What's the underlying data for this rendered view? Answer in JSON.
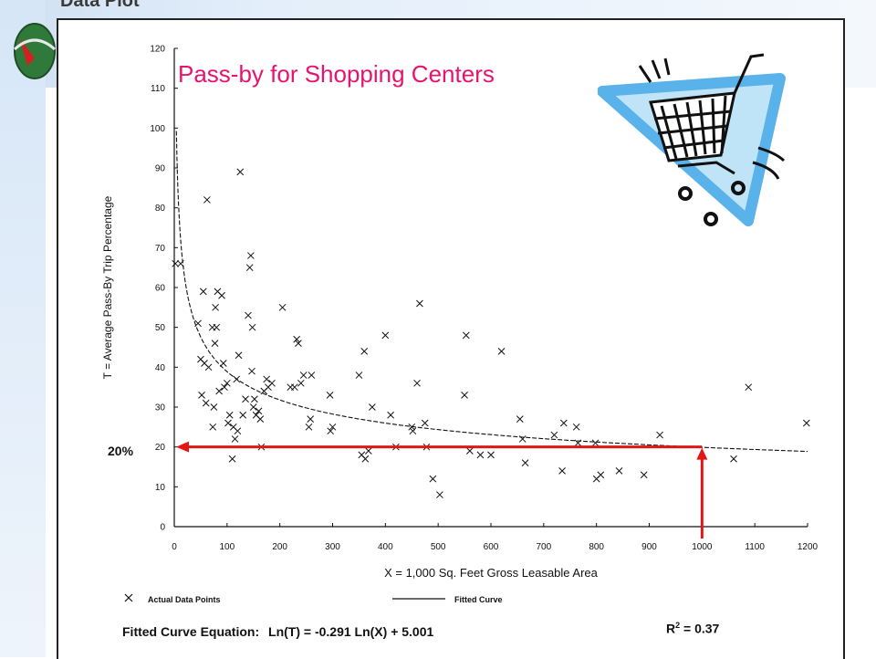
{
  "slide": {
    "header": "Data Plot",
    "title": "Pass-by for Shopping Centers",
    "callout_label": "20%",
    "callout_value": 20,
    "callout_x": 1000
  },
  "chart_data": {
    "type": "scatter",
    "title": "",
    "xlabel": "X = 1,000 Sq. Feet Gross Leasable Area",
    "ylabel": "T = Average Pass-By Trip Percentage",
    "xlim": [
      0,
      1200
    ],
    "ylim": [
      0,
      120
    ],
    "x_ticks": [
      "0",
      "100",
      "200",
      "300",
      "400",
      "500",
      "600",
      "700",
      "800",
      "900",
      "1000",
      "1100",
      "1200"
    ],
    "y_ticks": [
      "0",
      "10",
      "20",
      "30",
      "40",
      "50",
      "60",
      "70",
      "80",
      "90",
      "100",
      "110",
      "120"
    ],
    "grid": false,
    "legend": [
      {
        "label": "Actual Data Points",
        "marker": "x"
      },
      {
        "label": "Fitted Curve",
        "marker": "line"
      }
    ],
    "equation_label": "Fitted Curve Equation:",
    "equation": "Ln(T) = -0.291 Ln(X) + 5.001",
    "r_squared_label": "R",
    "r_squared_sup": "2",
    "r_squared_value": "= 0.37",
    "fitted_curve": {
      "a": -0.291,
      "b": 5.001,
      "x_start": 4,
      "x_end": 1200
    },
    "series": [
      {
        "name": "Actual Data Points",
        "points": [
          [
            2,
            66
          ],
          [
            12,
            66
          ],
          [
            45,
            51
          ],
          [
            50,
            42
          ],
          [
            52,
            33
          ],
          [
            55,
            59
          ],
          [
            57,
            41
          ],
          [
            60,
            31
          ],
          [
            62,
            82
          ],
          [
            65,
            40
          ],
          [
            72,
            50
          ],
          [
            73,
            25
          ],
          [
            75,
            30
          ],
          [
            77,
            46
          ],
          [
            78,
            55
          ],
          [
            80,
            50
          ],
          [
            82,
            59
          ],
          [
            85,
            34
          ],
          [
            90,
            58
          ],
          [
            93,
            41
          ],
          [
            95,
            35
          ],
          [
            100,
            36
          ],
          [
            102,
            26
          ],
          [
            105,
            28
          ],
          [
            110,
            17
          ],
          [
            112,
            25
          ],
          [
            115,
            22
          ],
          [
            118,
            37
          ],
          [
            120,
            24
          ],
          [
            122,
            43
          ],
          [
            125,
            89
          ],
          [
            130,
            28
          ],
          [
            135,
            32
          ],
          [
            140,
            53
          ],
          [
            143,
            65
          ],
          [
            145,
            68
          ],
          [
            147,
            39
          ],
          [
            148,
            50
          ],
          [
            150,
            30
          ],
          [
            152,
            32
          ],
          [
            155,
            28
          ],
          [
            160,
            29
          ],
          [
            163,
            27
          ],
          [
            165,
            20
          ],
          [
            170,
            34
          ],
          [
            175,
            37
          ],
          [
            178,
            35
          ],
          [
            185,
            36
          ],
          [
            205,
            55
          ],
          [
            220,
            35
          ],
          [
            228,
            35
          ],
          [
            232,
            47
          ],
          [
            235,
            46
          ],
          [
            240,
            36
          ],
          [
            245,
            38
          ],
          [
            255,
            25
          ],
          [
            258,
            27
          ],
          [
            260,
            38
          ],
          [
            295,
            33
          ],
          [
            296,
            24
          ],
          [
            300,
            25
          ],
          [
            350,
            38
          ],
          [
            355,
            18
          ],
          [
            360,
            44
          ],
          [
            362,
            17
          ],
          [
            368,
            19
          ],
          [
            375,
            30
          ],
          [
            400,
            48
          ],
          [
            410,
            28
          ],
          [
            420,
            20
          ],
          [
            450,
            25
          ],
          [
            452,
            24
          ],
          [
            460,
            36
          ],
          [
            465,
            56
          ],
          [
            475,
            26
          ],
          [
            478,
            20
          ],
          [
            490,
            12
          ],
          [
            503,
            8
          ],
          [
            550,
            33
          ],
          [
            553,
            48
          ],
          [
            560,
            19
          ],
          [
            580,
            18
          ],
          [
            600,
            18
          ],
          [
            620,
            44
          ],
          [
            655,
            27
          ],
          [
            660,
            22
          ],
          [
            665,
            16
          ],
          [
            720,
            23
          ],
          [
            735,
            14
          ],
          [
            738,
            26
          ],
          [
            762,
            25
          ],
          [
            765,
            21
          ],
          [
            798,
            21
          ],
          [
            800,
            12
          ],
          [
            808,
            13
          ],
          [
            843,
            14
          ],
          [
            890,
            13
          ],
          [
            920,
            23
          ],
          [
            1060,
            17
          ],
          [
            1088,
            35
          ],
          [
            1198,
            26
          ]
        ]
      }
    ]
  },
  "icons": {
    "cart": "shopping-cart-icon",
    "logo": "logo-icon"
  },
  "colors": {
    "title": "#e8136e",
    "arrow": "#e31515",
    "cart_frame": "#5ab2ea",
    "cart_fill": "#bfe4f8"
  }
}
